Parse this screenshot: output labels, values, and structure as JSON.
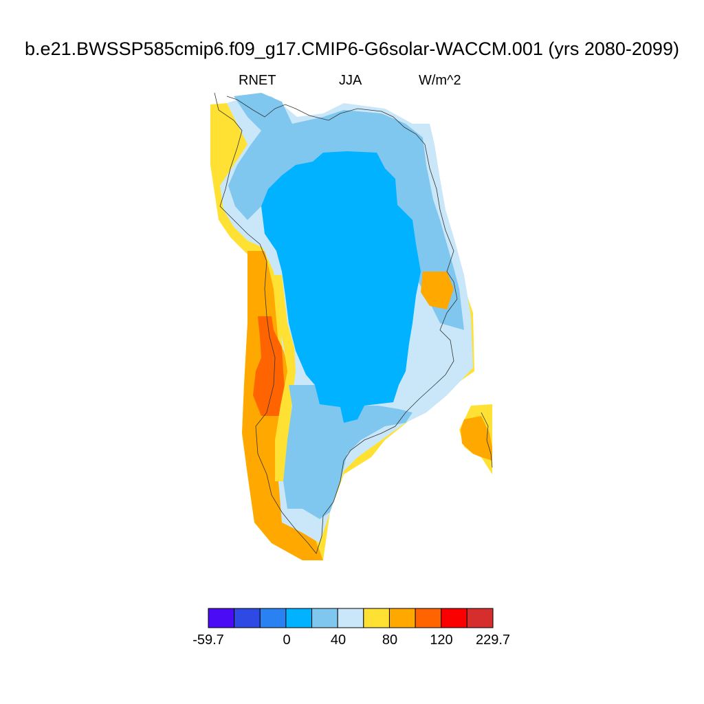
{
  "title": "b.e21.BWSSP585cmip6.f09_g17.CMIP6-G6solar-WACCM.001 (yrs 2080-2099)",
  "left_label": "RNET",
  "center_label": "JJA",
  "right_label": "W/m^2",
  "region": "Greenland",
  "colorbar": {
    "colors": [
      "#4b0cf5",
      "#2f4ae4",
      "#2a82f2",
      "#00b2ff",
      "#7fc7ef",
      "#c9e7f8",
      "#ffe133",
      "#ffa800",
      "#ff6400",
      "#fa0000",
      "#d62d2d"
    ],
    "tick_labels": [
      "-59.7",
      "0",
      "40",
      "80",
      "120",
      "229.7"
    ],
    "levels": [
      -59.7,
      -40,
      -20,
      0,
      20,
      40,
      60,
      80,
      100,
      120,
      140,
      229.7
    ]
  }
}
